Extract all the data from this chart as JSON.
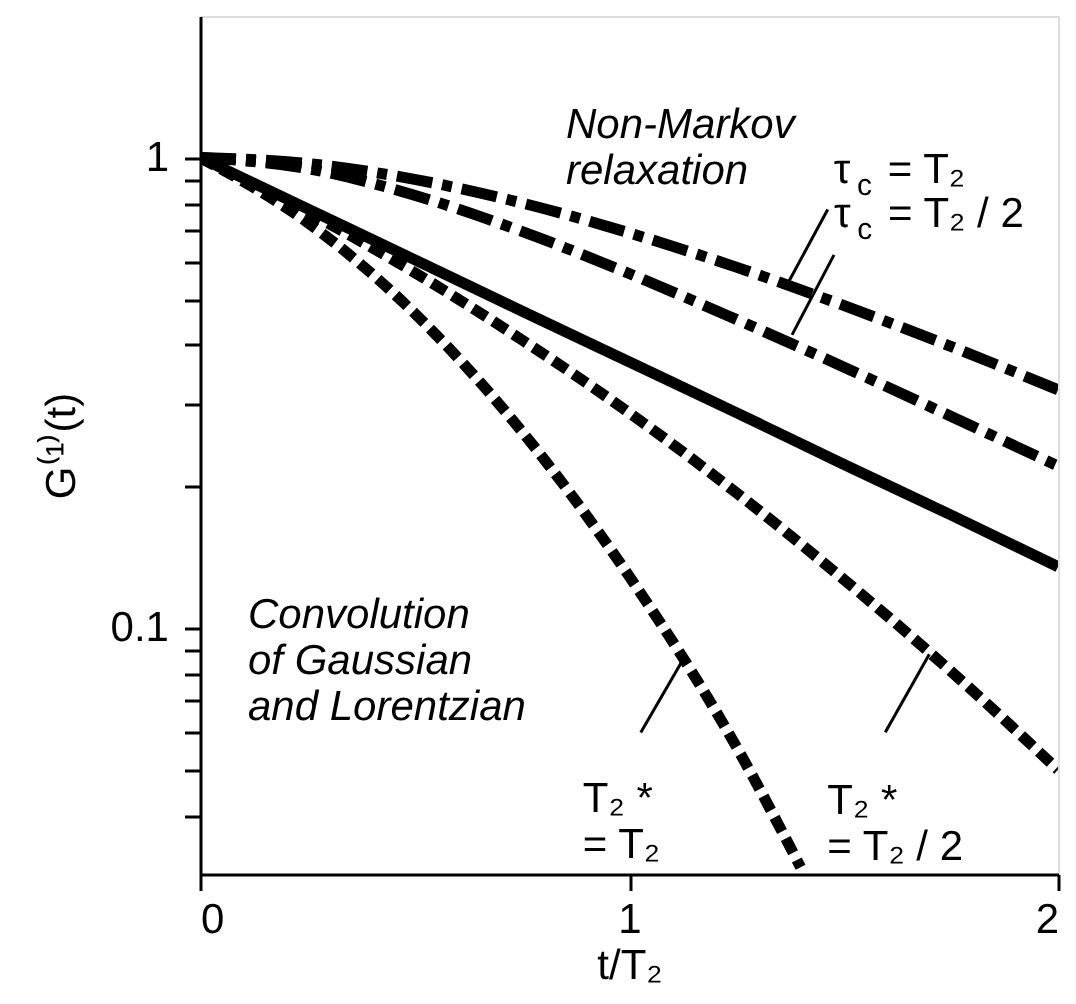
{
  "chart_data": {
    "type": "line",
    "xlabel": "t/T₂",
    "ylabel": "G⁽¹⁾(t)",
    "log": "y",
    "grid": false,
    "marker": "none",
    "xlim": [
      0,
      2
    ],
    "xticks": [
      0,
      1,
      2
    ],
    "ylim": [
      0.03,
      2
    ],
    "yticks": [
      {
        "value": 0.04,
        "label": null
      },
      {
        "value": 0.05,
        "label": null
      },
      {
        "value": 0.06,
        "label": null
      },
      {
        "value": 0.07,
        "label": null
      },
      {
        "value": 0.08,
        "label": null
      },
      {
        "value": 0.09,
        "label": null
      },
      0.1,
      {
        "value": 0.2,
        "label": null
      },
      {
        "value": 0.3,
        "label": null
      },
      {
        "value": 0.4,
        "label": null
      },
      {
        "value": 0.5,
        "label": null
      },
      {
        "value": 0.6,
        "label": null
      },
      {
        "value": 0.7,
        "label": null
      },
      {
        "value": 0.8,
        "label": null
      },
      {
        "value": 0.9,
        "label": null
      },
      1
    ],
    "series": [
      {
        "color": "#000000",
        "line_style": "dashdot",
        "x": [
          0,
          0.25,
          0.5,
          0.75,
          1,
          1.25,
          1.5,
          1.75,
          2
        ],
        "values": [
          1,
          0.972,
          0.899,
          0.801,
          0.692,
          0.585,
          0.485,
          0.397,
          0.321
        ]
      },
      {
        "color": "#000000",
        "line_style": "dashdot",
        "x": [
          0,
          0.25,
          0.5,
          0.75,
          1,
          1.25,
          1.5,
          1.75,
          2
        ],
        "values": [
          1,
          0.948,
          0.832,
          0.697,
          0.567,
          0.453,
          0.359,
          0.282,
          0.221
        ]
      },
      {
        "color": "#000000",
        "line_style": "solid",
        "x": [
          0,
          0.25,
          0.5,
          0.75,
          1,
          1.25,
          1.5,
          1.75,
          2
        ],
        "values": [
          1,
          0.779,
          0.607,
          0.472,
          0.368,
          0.287,
          0.223,
          0.174,
          0.135
        ]
      },
      {
        "color": "#000000",
        "line_style": "dashed",
        "x": [
          0,
          0.25,
          0.5,
          0.75,
          1,
          1.25,
          1.5,
          1.75,
          2
        ],
        "values": [
          1,
          0.767,
          0.57,
          0.41,
          0.287,
          0.194,
          0.127,
          0.081,
          0.05
        ]
      },
      {
        "color": "#000000",
        "line_style": "dashed",
        "x": [
          0,
          0.25,
          0.5,
          0.75,
          1,
          1.25,
          1.4
        ],
        "values": [
          1,
          0.729,
          0.467,
          0.262,
          0.129,
          0.056,
          0.031
        ]
      }
    ],
    "annotations": [
      "Non-Markov\nrelaxation",
      "Convolution\nof Gaussian\nand Lorentzian",
      {
        "text": "τ$_{c}$ = T₂",
        "x": 1.37,
        "y": 0.54
      },
      {
        "text": "τ$_{c}$ = T₂ / 2",
        "x": 1.38,
        "y": 0.42
      },
      {
        "text": "T₂ *\n    = T₂",
        "x": 1.13,
        "y": 0.087
      },
      {
        "text": "T₂ *\n    = T₂ / 2",
        "x": 1.7,
        "y": 0.088
      }
    ]
  }
}
